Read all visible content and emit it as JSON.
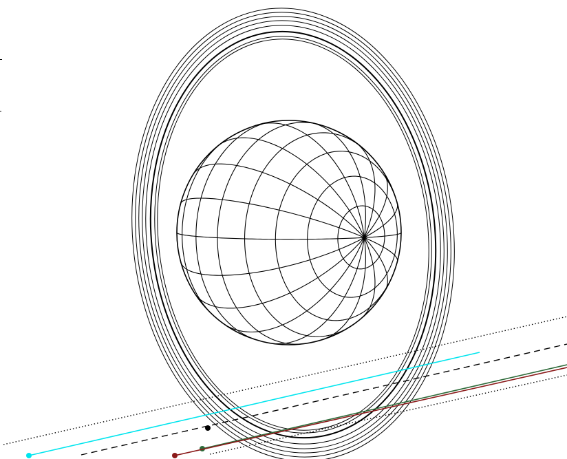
{
  "figure": {
    "background": "#ffffff",
    "stroke": "#000000",
    "globe": {
      "parallels": 10,
      "meridians": 18,
      "pole_visible": true
    },
    "rings": {
      "count": 8
    },
    "lines": [
      {
        "name": "cyan-line",
        "color": "#00e5ee",
        "style": "solid",
        "endpoint_dot": true
      },
      {
        "name": "dashed-line",
        "color": "#000000",
        "style": "dashed",
        "endpoint_dot": true
      },
      {
        "name": "green-line",
        "color": "#2e6b3a",
        "style": "solid",
        "endpoint_dot": true
      },
      {
        "name": "dark-red-line",
        "color": "#8b1a1a",
        "style": "solid",
        "endpoint_dot": true
      },
      {
        "name": "dotted-upper-line",
        "color": "#000000",
        "style": "dotted",
        "endpoint_dot": false
      },
      {
        "name": "dotted-lower-line",
        "color": "#000000",
        "style": "dotted",
        "endpoint_dot": false
      }
    ]
  }
}
